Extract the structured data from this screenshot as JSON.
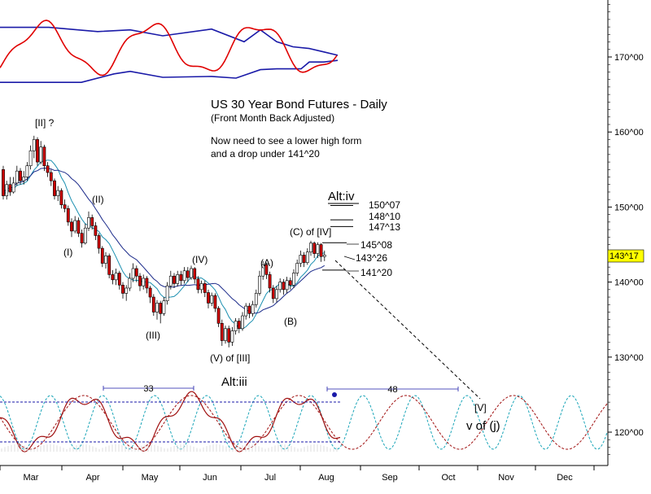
{
  "chart_data": {
    "type": "candlestick",
    "title": "US 30 Year Bond Futures - Daily",
    "subtitle": "(Front Month Back Adjusted)",
    "note_lines": [
      "Now need to see a lower high form",
      "and a drop under 141^20"
    ],
    "y_ticks": [
      "120^00",
      "130^00",
      "140^00",
      "150^00",
      "160^00",
      "170^00"
    ],
    "y_tick_values": [
      120,
      130,
      140,
      150,
      160,
      170
    ],
    "last_price": "143^17",
    "x_ticks": [
      "Mar",
      "Apr",
      "May",
      "Jun",
      "Jul",
      "Aug",
      "Sep",
      "Oct",
      "Nov",
      "Dec"
    ],
    "price_levels": [
      {
        "label": "150^07",
        "value": 150.2
      },
      {
        "label": "148^10",
        "value": 148.3
      },
      {
        "label": "147^13",
        "value": 147.4
      },
      {
        "label": "145^08",
        "value": 145.25
      },
      {
        "label": "143^26",
        "value": 143.8
      },
      {
        "label": "141^20",
        "value": 141.6
      }
    ],
    "wave_labels": [
      {
        "text": "[II] ?",
        "date": "Mar 6",
        "price": 162.8
      },
      {
        "text": "(II)",
        "date": "Apr 4",
        "price": 152.5
      },
      {
        "text": "(I)",
        "date": "Mar 22",
        "price": 144.5
      },
      {
        "text": "(IV)",
        "date": "May 20",
        "price": 143.3
      },
      {
        "text": "(III)",
        "date": "May 5",
        "price": 132.3
      },
      {
        "text": "(A)",
        "date": "Jul 1",
        "price": 142.8
      },
      {
        "text": "(B)",
        "date": "Jul 12",
        "price": 134.7
      },
      {
        "text": "(V) of [III]",
        "date": "Jun 13",
        "price": 129.8
      },
      {
        "text": "(C) of [IV]",
        "date": "Jul 26",
        "price": 146.5
      },
      {
        "text": "Alt:iv",
        "date": "Aug 8",
        "price": 151.4
      },
      {
        "text": "Alt:iii",
        "date": "Jun 17",
        "price": 126.0
      },
      {
        "text": "[V]",
        "date": "Oct 19",
        "price": 123.5
      },
      {
        "text": "v of (j)",
        "date": "Oct 19",
        "price": 120.8
      }
    ],
    "candles": [
      [
        155,
        151.5,
        155.5,
        151
      ],
      [
        151.5,
        153,
        153.5,
        151
      ],
      [
        153,
        152,
        154,
        151.5
      ],
      [
        152,
        153.2,
        154,
        151.8
      ],
      [
        153.2,
        154.8,
        155.5,
        152.8
      ],
      [
        154.8,
        153.5,
        155.2,
        153
      ],
      [
        153.5,
        154,
        154.8,
        153
      ],
      [
        154,
        155.5,
        156,
        153.5
      ],
      [
        155.5,
        157.5,
        158.2,
        155
      ],
      [
        157.5,
        159,
        159.5,
        156.5
      ],
      [
        159,
        156,
        159.3,
        155.5
      ],
      [
        156,
        158,
        158.8,
        155.7
      ],
      [
        158,
        155.5,
        158.3,
        154.8
      ],
      [
        155.5,
        154.6,
        156,
        154
      ],
      [
        154.6,
        153.5,
        155,
        152.8
      ],
      [
        153.5,
        151.5,
        153.8,
        151
      ],
      [
        151.5,
        152.2,
        152.8,
        150.8
      ],
      [
        152.2,
        150.3,
        152.5,
        149.8
      ],
      [
        150.3,
        149.8,
        151,
        149.3
      ],
      [
        149.8,
        148,
        150.2,
        147.5
      ],
      [
        148,
        146.8,
        148.5,
        146
      ],
      [
        146.8,
        148.2,
        148.8,
        146.5
      ],
      [
        148.2,
        146.5,
        148.6,
        146
      ],
      [
        146.5,
        145.2,
        147,
        144.6
      ],
      [
        145.2,
        147.2,
        147.8,
        145
      ],
      [
        147.2,
        148.6,
        149.4,
        146.8
      ],
      [
        148.6,
        147.5,
        149,
        147
      ],
      [
        147.5,
        146.2,
        148,
        145.6
      ],
      [
        146.2,
        144.5,
        146.5,
        143.8
      ],
      [
        144.5,
        142.5,
        144.8,
        142
      ],
      [
        142.5,
        143.5,
        144,
        141.8
      ],
      [
        143.5,
        141,
        143.8,
        140.5
      ],
      [
        141,
        140.3,
        141.6,
        139.7
      ],
      [
        140.3,
        141.2,
        141.8,
        139.6
      ],
      [
        141.2,
        139.6,
        141.5,
        139
      ],
      [
        139.6,
        138.5,
        140,
        137.8
      ],
      [
        138.5,
        139.2,
        139.6,
        137.5
      ],
      [
        139.2,
        140.5,
        141.2,
        138.8
      ],
      [
        140.5,
        141.8,
        142.5,
        140
      ],
      [
        141.8,
        140.8,
        142.2,
        140
      ],
      [
        140.8,
        139.5,
        141.2,
        138.8
      ],
      [
        139.5,
        140.5,
        141,
        139
      ],
      [
        140.5,
        139.2,
        140.8,
        138.5
      ],
      [
        139.2,
        138,
        139.5,
        137.2
      ],
      [
        138,
        136,
        138.4,
        135.5
      ],
      [
        136,
        137.2,
        137.6,
        135
      ],
      [
        137.2,
        135.8,
        137.5,
        134.5
      ],
      [
        135.8,
        137.5,
        138,
        135.5
      ],
      [
        137.5,
        139.5,
        140,
        137
      ],
      [
        139.5,
        140.8,
        141.5,
        139
      ],
      [
        140.8,
        139.8,
        141.2,
        139.2
      ],
      [
        139.8,
        141,
        141.5,
        139.4
      ],
      [
        141,
        140.2,
        141.5,
        139.6
      ],
      [
        140.2,
        141.5,
        142,
        139.8
      ],
      [
        141.5,
        140.6,
        142,
        140
      ],
      [
        140.6,
        141.8,
        142.2,
        140.3
      ],
      [
        141.8,
        140.4,
        142,
        139.8
      ],
      [
        140.4,
        139,
        140.8,
        138.5
      ],
      [
        139,
        139.8,
        140.2,
        138.5
      ],
      [
        139.8,
        138.6,
        140.2,
        138
      ],
      [
        138.6,
        137.2,
        139,
        136.5
      ],
      [
        137.2,
        138.2,
        138.6,
        136.8
      ],
      [
        138.2,
        136.5,
        138.5,
        136
      ],
      [
        136.5,
        134.5,
        136.8,
        134
      ],
      [
        134.5,
        132.2,
        135,
        131.5
      ],
      [
        132.2,
        133.8,
        134.2,
        131.8
      ],
      [
        133.8,
        132,
        134.2,
        131.3
      ],
      [
        132,
        133.5,
        134,
        131.5
      ],
      [
        133.5,
        134.8,
        135.2,
        133
      ],
      [
        134.8,
        133.8,
        135.2,
        133.2
      ],
      [
        133.8,
        135.5,
        136,
        133.5
      ],
      [
        135.5,
        136.8,
        137.2,
        135
      ],
      [
        136.8,
        135.8,
        137.2,
        135.2
      ],
      [
        135.8,
        137,
        137.5,
        135.4
      ],
      [
        137,
        138.5,
        139,
        136.6
      ],
      [
        138.5,
        140.8,
        141.5,
        138.2
      ],
      [
        140.8,
        142.3,
        142.8,
        140.3
      ],
      [
        142.3,
        141,
        142.6,
        140.4
      ],
      [
        141,
        139.2,
        141.4,
        138.6
      ],
      [
        139.2,
        137.8,
        139.6,
        137.2
      ],
      [
        137.8,
        139,
        139.5,
        137.3
      ],
      [
        139,
        140,
        140.5,
        138.6
      ],
      [
        140,
        139,
        140.4,
        138.3
      ],
      [
        139,
        140.2,
        140.7,
        138.5
      ],
      [
        140.2,
        139.6,
        140.6,
        139
      ],
      [
        139.6,
        141.2,
        141.7,
        139.2
      ],
      [
        141.2,
        142.5,
        143,
        140.8
      ],
      [
        142.5,
        143.6,
        144.2,
        142
      ],
      [
        143.6,
        142.6,
        144,
        142
      ],
      [
        142.6,
        144,
        144.5,
        142.3
      ],
      [
        144,
        145.2,
        145.5,
        143.5
      ],
      [
        145.2,
        143.8,
        145.4,
        143.2
      ],
      [
        143.8,
        145,
        145.3,
        143.2
      ],
      [
        145,
        143.4,
        145.2,
        142.7
      ],
      [
        143.4,
        143.6,
        144.2,
        142.8
      ]
    ],
    "last_close": 143.53,
    "upper_band": [
      [
        0,
        73.5
      ],
      [
        30,
        73.5
      ],
      [
        60,
        73.5
      ],
      [
        120,
        73
      ],
      [
        160,
        73.2
      ],
      [
        200,
        72.5
      ],
      [
        260,
        73.3
      ],
      [
        300,
        71.8
      ],
      [
        320,
        73.2
      ],
      [
        340,
        71.8
      ],
      [
        360,
        71.2
      ],
      [
        380,
        71
      ],
      [
        398,
        70.6
      ],
      [
        415,
        70.2
      ]
    ],
    "lower_band": [
      [
        0,
        67
      ],
      [
        40,
        67
      ],
      [
        100,
        67
      ],
      [
        140,
        68
      ],
      [
        160,
        68.3
      ],
      [
        200,
        67.6
      ],
      [
        260,
        67.7
      ],
      [
        290,
        67.5
      ],
      [
        320,
        68.5
      ],
      [
        340,
        68.6
      ],
      [
        370,
        68.6
      ],
      [
        380,
        69.4
      ],
      [
        398,
        69.4
      ],
      [
        415,
        69.6
      ]
    ]
  }
}
